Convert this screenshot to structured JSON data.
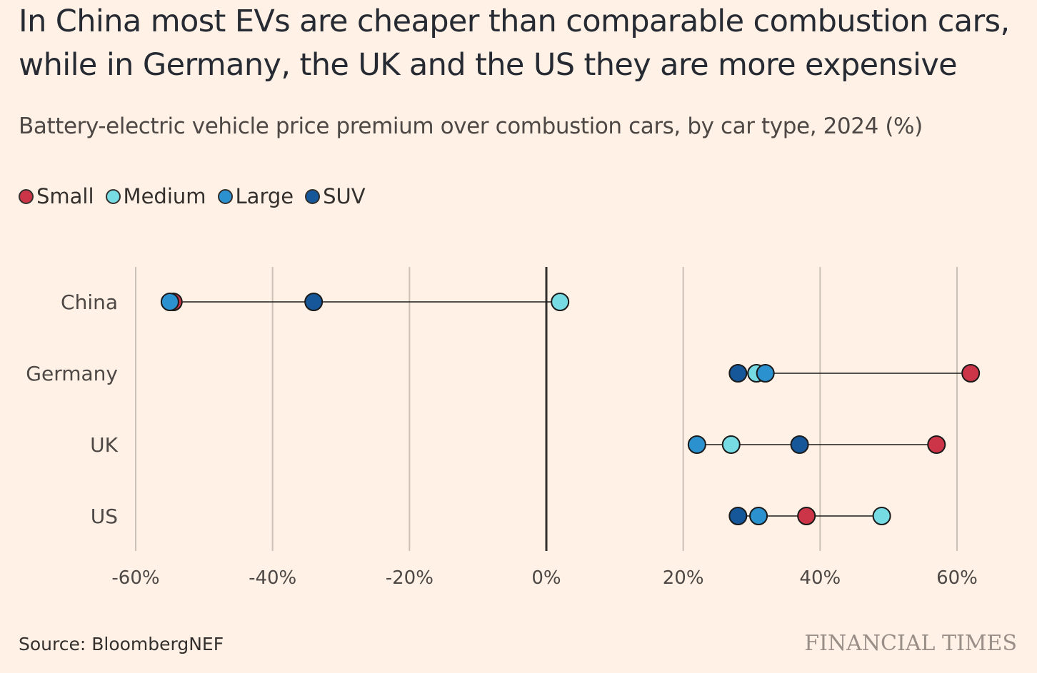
{
  "chart_data": {
    "type": "scatter",
    "subtype": "dot-plot",
    "title": "In China most EVs are cheaper than comparable combustion cars, while in Germany, the UK and the US they are more expensive",
    "subtitle": "Battery-electric vehicle price premium over combustion cars, by car type, 2024 (%)",
    "xlabel": "",
    "ylabel": "",
    "xlim": [
      -60,
      60
    ],
    "x_ticks": [
      -60,
      -40,
      -20,
      0,
      20,
      40,
      60
    ],
    "x_tick_labels": [
      "-60%",
      "-40%",
      "-20%",
      "0%",
      "20%",
      "40%",
      "60%"
    ],
    "grid": "vertical",
    "legend_position": "top-left",
    "categories": [
      "China",
      "Germany",
      "UK",
      "US"
    ],
    "series": [
      {
        "name": "Small",
        "color": "#cc3447",
        "values": [
          -54.5,
          62,
          57,
          38
        ]
      },
      {
        "name": "Medium",
        "color": "#76dbe3",
        "values": [
          2,
          30.7,
          27,
          49
        ]
      },
      {
        "name": "Large",
        "color": "#2b91cf",
        "values": [
          -55,
          32,
          22,
          31
        ]
      },
      {
        "name": "SUV",
        "color": "#155799",
        "values": [
          -34,
          28,
          37,
          28
        ]
      }
    ],
    "draw_order": [
      "Small",
      "Medium",
      "Large",
      "SUV"
    ]
  },
  "legend": [
    {
      "label": "Small",
      "color": "#cc3447"
    },
    {
      "label": "Medium",
      "color": "#76dbe3"
    },
    {
      "label": "Large",
      "color": "#2b91cf"
    },
    {
      "label": "SUV",
      "color": "#155799"
    }
  ],
  "footer": {
    "source": "Source: BloombergNEF",
    "brand": "FINANCIAL TIMES"
  }
}
